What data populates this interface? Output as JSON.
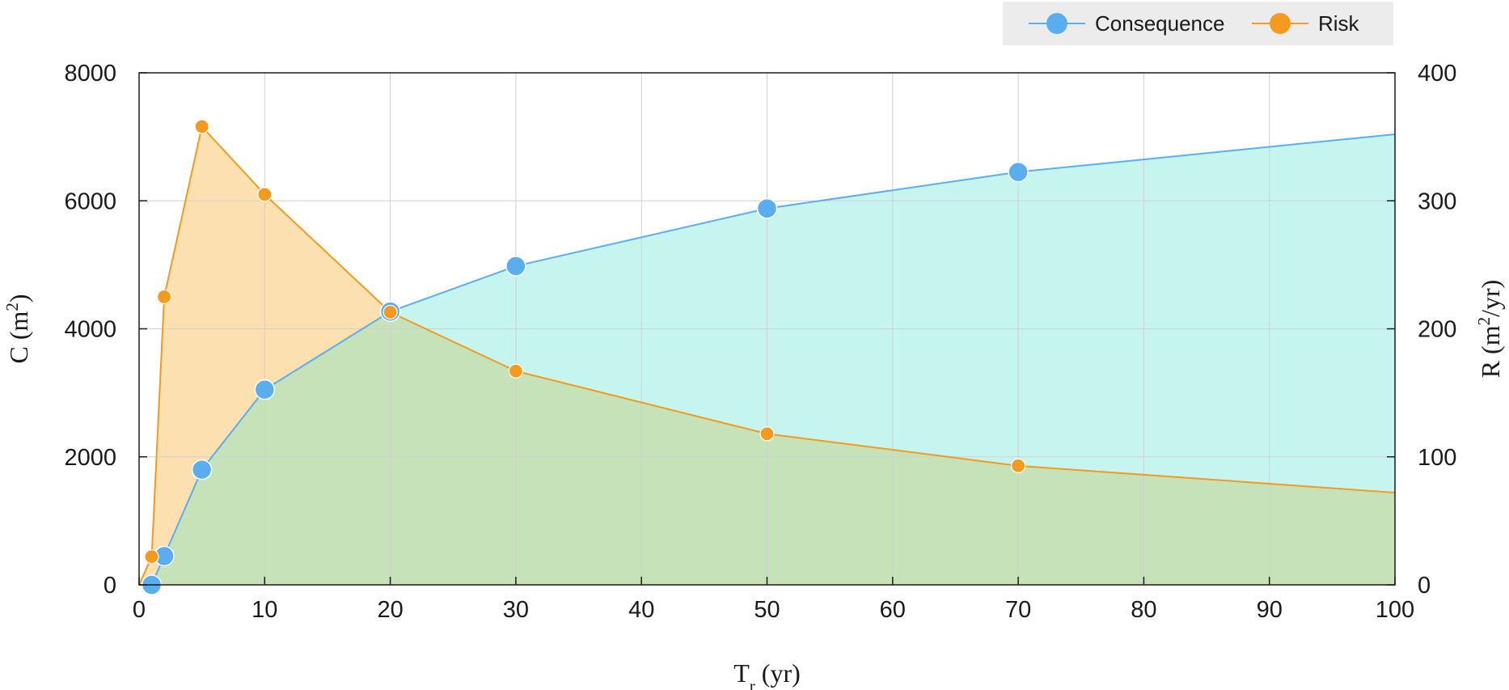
{
  "chart_data": {
    "type": "area",
    "xlabel": {
      "main": "T",
      "sub": "r",
      "rest": " (yr)"
    },
    "ylabel_left": {
      "main": "C (m",
      "sup": "2",
      "rest": ")"
    },
    "ylabel_right": {
      "main": "R (m",
      "sup": "2",
      "rest": "/yr)"
    },
    "xlim": [
      0,
      100
    ],
    "ylim_left": [
      0,
      8000
    ],
    "ylim_right": [
      0,
      400
    ],
    "xticks": [
      0,
      10,
      20,
      30,
      40,
      50,
      60,
      70,
      80,
      90,
      100
    ],
    "yticks_left": [
      0,
      2000,
      4000,
      6000,
      8000
    ],
    "yticks_right": [
      0,
      100,
      200,
      300,
      400
    ],
    "grid": true,
    "legend_position": "top-right",
    "series": [
      {
        "name": "Consequence",
        "axis": "left",
        "color": "#5aaef0",
        "fill": "#c6f5f0",
        "line_x": [
          0,
          1,
          2,
          5,
          10,
          20,
          30,
          50,
          70,
          100
        ],
        "line_y": [
          0,
          0,
          450,
          1800,
          3050,
          4270,
          4980,
          5880,
          6450,
          7040
        ],
        "marker_x": [
          1,
          2,
          5,
          10,
          20,
          30,
          50,
          70
        ],
        "marker_y": [
          0,
          450,
          1800,
          3050,
          4270,
          4980,
          5880,
          6450
        ]
      },
      {
        "name": "Risk",
        "axis": "right",
        "color": "#f39a1f",
        "fill": "#fde0b0",
        "line_x": [
          0,
          1,
          2,
          5,
          10,
          20,
          30,
          50,
          70,
          100
        ],
        "line_y": [
          0,
          22,
          225,
          358,
          305,
          213,
          167,
          118,
          93,
          72
        ],
        "marker_x": [
          1,
          2,
          5,
          10,
          20,
          30,
          50,
          70
        ],
        "marker_y": [
          22,
          225,
          358,
          305,
          213,
          167,
          118,
          93
        ]
      }
    ],
    "overlap_fill": "#c6e2b8",
    "colors": {
      "grid": "#d0d0d0",
      "frame": "#1a1a1a",
      "legend_bg": "#ececec"
    }
  }
}
